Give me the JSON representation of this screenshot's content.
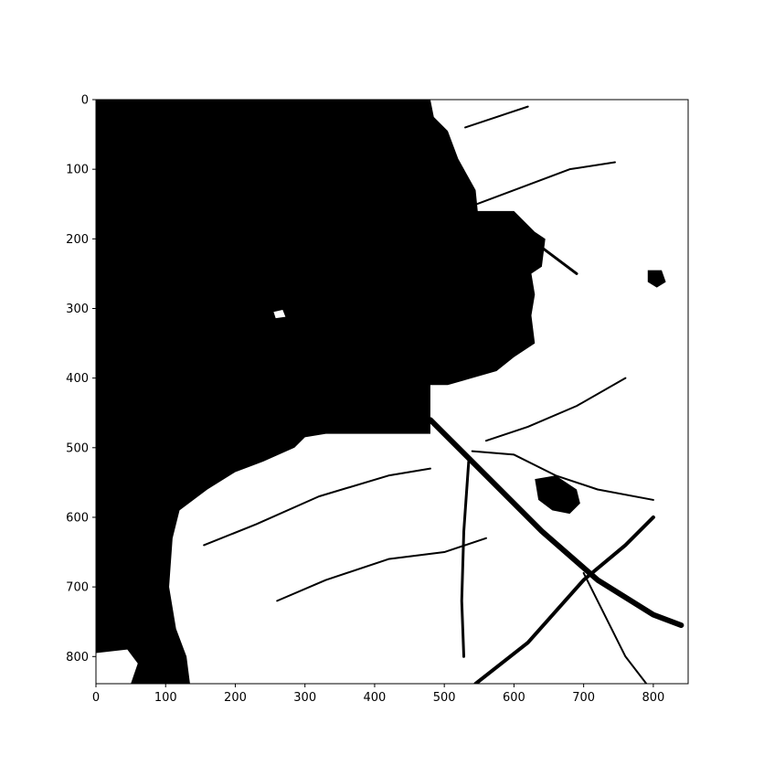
{
  "chart_data": {
    "type": "heatmap",
    "subtype": "binary-image",
    "title": "",
    "xlabel": "",
    "ylabel": "",
    "colormap": "gray (0 = black, 1 = white)",
    "colors": {
      "low": "#000000",
      "high": "#ffffff"
    },
    "image_size": {
      "width": 850,
      "height": 839
    },
    "xlim": [
      0,
      850
    ],
    "ylim": [
      839,
      0
    ],
    "y_axis_inverted": true,
    "grid": false,
    "legend": "none",
    "x_ticks": [
      0,
      100,
      200,
      300,
      400,
      500,
      600,
      700,
      800
    ],
    "x_tick_labels": [
      "0",
      "100",
      "200",
      "300",
      "400",
      "500",
      "600",
      "700",
      "800"
    ],
    "y_ticks": [
      0,
      100,
      200,
      300,
      400,
      500,
      600,
      700,
      800
    ],
    "y_tick_labels": [
      "0",
      "100",
      "200",
      "300",
      "400",
      "500",
      "600",
      "700",
      "800"
    ],
    "regions": [
      {
        "name": "large-dark-region",
        "value": 0,
        "outline": [
          [
            0,
            0
          ],
          [
            480,
            0
          ],
          [
            485,
            25
          ],
          [
            505,
            45
          ],
          [
            520,
            85
          ],
          [
            545,
            130
          ],
          [
            548,
            160
          ],
          [
            600,
            160
          ],
          [
            630,
            190
          ],
          [
            645,
            200
          ],
          [
            640,
            240
          ],
          [
            625,
            250
          ],
          [
            630,
            280
          ],
          [
            625,
            310
          ],
          [
            630,
            350
          ],
          [
            600,
            370
          ],
          [
            575,
            390
          ],
          [
            540,
            400
          ],
          [
            505,
            410
          ],
          [
            480,
            410
          ],
          [
            480,
            480
          ],
          [
            330,
            480
          ],
          [
            300,
            485
          ],
          [
            285,
            500
          ],
          [
            240,
            520
          ],
          [
            200,
            535
          ],
          [
            160,
            560
          ],
          [
            120,
            590
          ],
          [
            110,
            630
          ],
          [
            105,
            700
          ],
          [
            115,
            760
          ],
          [
            130,
            800
          ],
          [
            135,
            839
          ],
          [
            0,
            839
          ]
        ]
      },
      {
        "name": "dark-patch-upper-right",
        "value": 0,
        "outline": [
          [
            792,
            245
          ],
          [
            812,
            245
          ],
          [
            818,
            262
          ],
          [
            805,
            270
          ],
          [
            792,
            262
          ]
        ]
      },
      {
        "name": "dark-patch-mid-right",
        "value": 0,
        "outline": [
          [
            630,
            545
          ],
          [
            660,
            540
          ],
          [
            690,
            560
          ],
          [
            695,
            580
          ],
          [
            680,
            595
          ],
          [
            655,
            590
          ],
          [
            635,
            575
          ]
        ]
      },
      {
        "name": "bright-spot",
        "value": 1,
        "outline": [
          [
            255,
            305
          ],
          [
            268,
            302
          ],
          [
            272,
            312
          ],
          [
            258,
            314
          ]
        ]
      },
      {
        "name": "bright-patch-lower-left",
        "value": 1,
        "outline": [
          [
            0,
            795
          ],
          [
            45,
            790
          ],
          [
            60,
            810
          ],
          [
            50,
            839
          ],
          [
            0,
            839
          ]
        ]
      }
    ],
    "lines": [
      {
        "name": "crack-diagonal-main",
        "value": 0,
        "points": [
          [
            480,
            460
          ],
          [
            560,
            540
          ],
          [
            640,
            620
          ],
          [
            720,
            690
          ],
          [
            800,
            740
          ],
          [
            840,
            755
          ]
        ],
        "width": 6
      },
      {
        "name": "crack-diagonal-lower",
        "value": 0,
        "points": [
          [
            545,
            839
          ],
          [
            620,
            780
          ],
          [
            700,
            690
          ],
          [
            760,
            640
          ],
          [
            800,
            600
          ]
        ],
        "width": 4
      },
      {
        "name": "crack-vertical",
        "value": 0,
        "points": [
          [
            535,
            520
          ],
          [
            528,
            620
          ],
          [
            525,
            720
          ],
          [
            528,
            800
          ]
        ],
        "width": 3
      },
      {
        "name": "crack-upper-1",
        "value": 0,
        "points": [
          [
            520,
            160
          ],
          [
            600,
            130
          ],
          [
            680,
            100
          ],
          [
            745,
            90
          ]
        ],
        "width": 2
      },
      {
        "name": "crack-upper-2",
        "value": 0,
        "points": [
          [
            610,
            190
          ],
          [
            650,
            220
          ],
          [
            690,
            250
          ]
        ],
        "width": 3
      },
      {
        "name": "crack-upper-3",
        "value": 0,
        "points": [
          [
            530,
            40
          ],
          [
            590,
            20
          ],
          [
            620,
            10
          ]
        ],
        "width": 2
      },
      {
        "name": "crack-mid-1",
        "value": 0,
        "points": [
          [
            560,
            490
          ],
          [
            620,
            470
          ],
          [
            690,
            440
          ],
          [
            760,
            400
          ]
        ],
        "width": 2
      },
      {
        "name": "crack-mid-2",
        "value": 0,
        "points": [
          [
            540,
            505
          ],
          [
            600,
            510
          ],
          [
            660,
            540
          ],
          [
            720,
            560
          ],
          [
            800,
            575
          ]
        ],
        "width": 2
      },
      {
        "name": "crack-left-1",
        "value": 0,
        "points": [
          [
            155,
            640
          ],
          [
            230,
            610
          ],
          [
            320,
            570
          ],
          [
            420,
            540
          ],
          [
            480,
            530
          ]
        ],
        "width": 2
      },
      {
        "name": "crack-left-2",
        "value": 0,
        "points": [
          [
            260,
            720
          ],
          [
            330,
            690
          ],
          [
            420,
            660
          ],
          [
            500,
            650
          ],
          [
            560,
            630
          ]
        ],
        "width": 2
      },
      {
        "name": "crack-lower-right",
        "value": 0,
        "points": [
          [
            700,
            680
          ],
          [
            730,
            740
          ],
          [
            760,
            800
          ],
          [
            790,
            839
          ]
        ],
        "width": 2
      }
    ]
  }
}
